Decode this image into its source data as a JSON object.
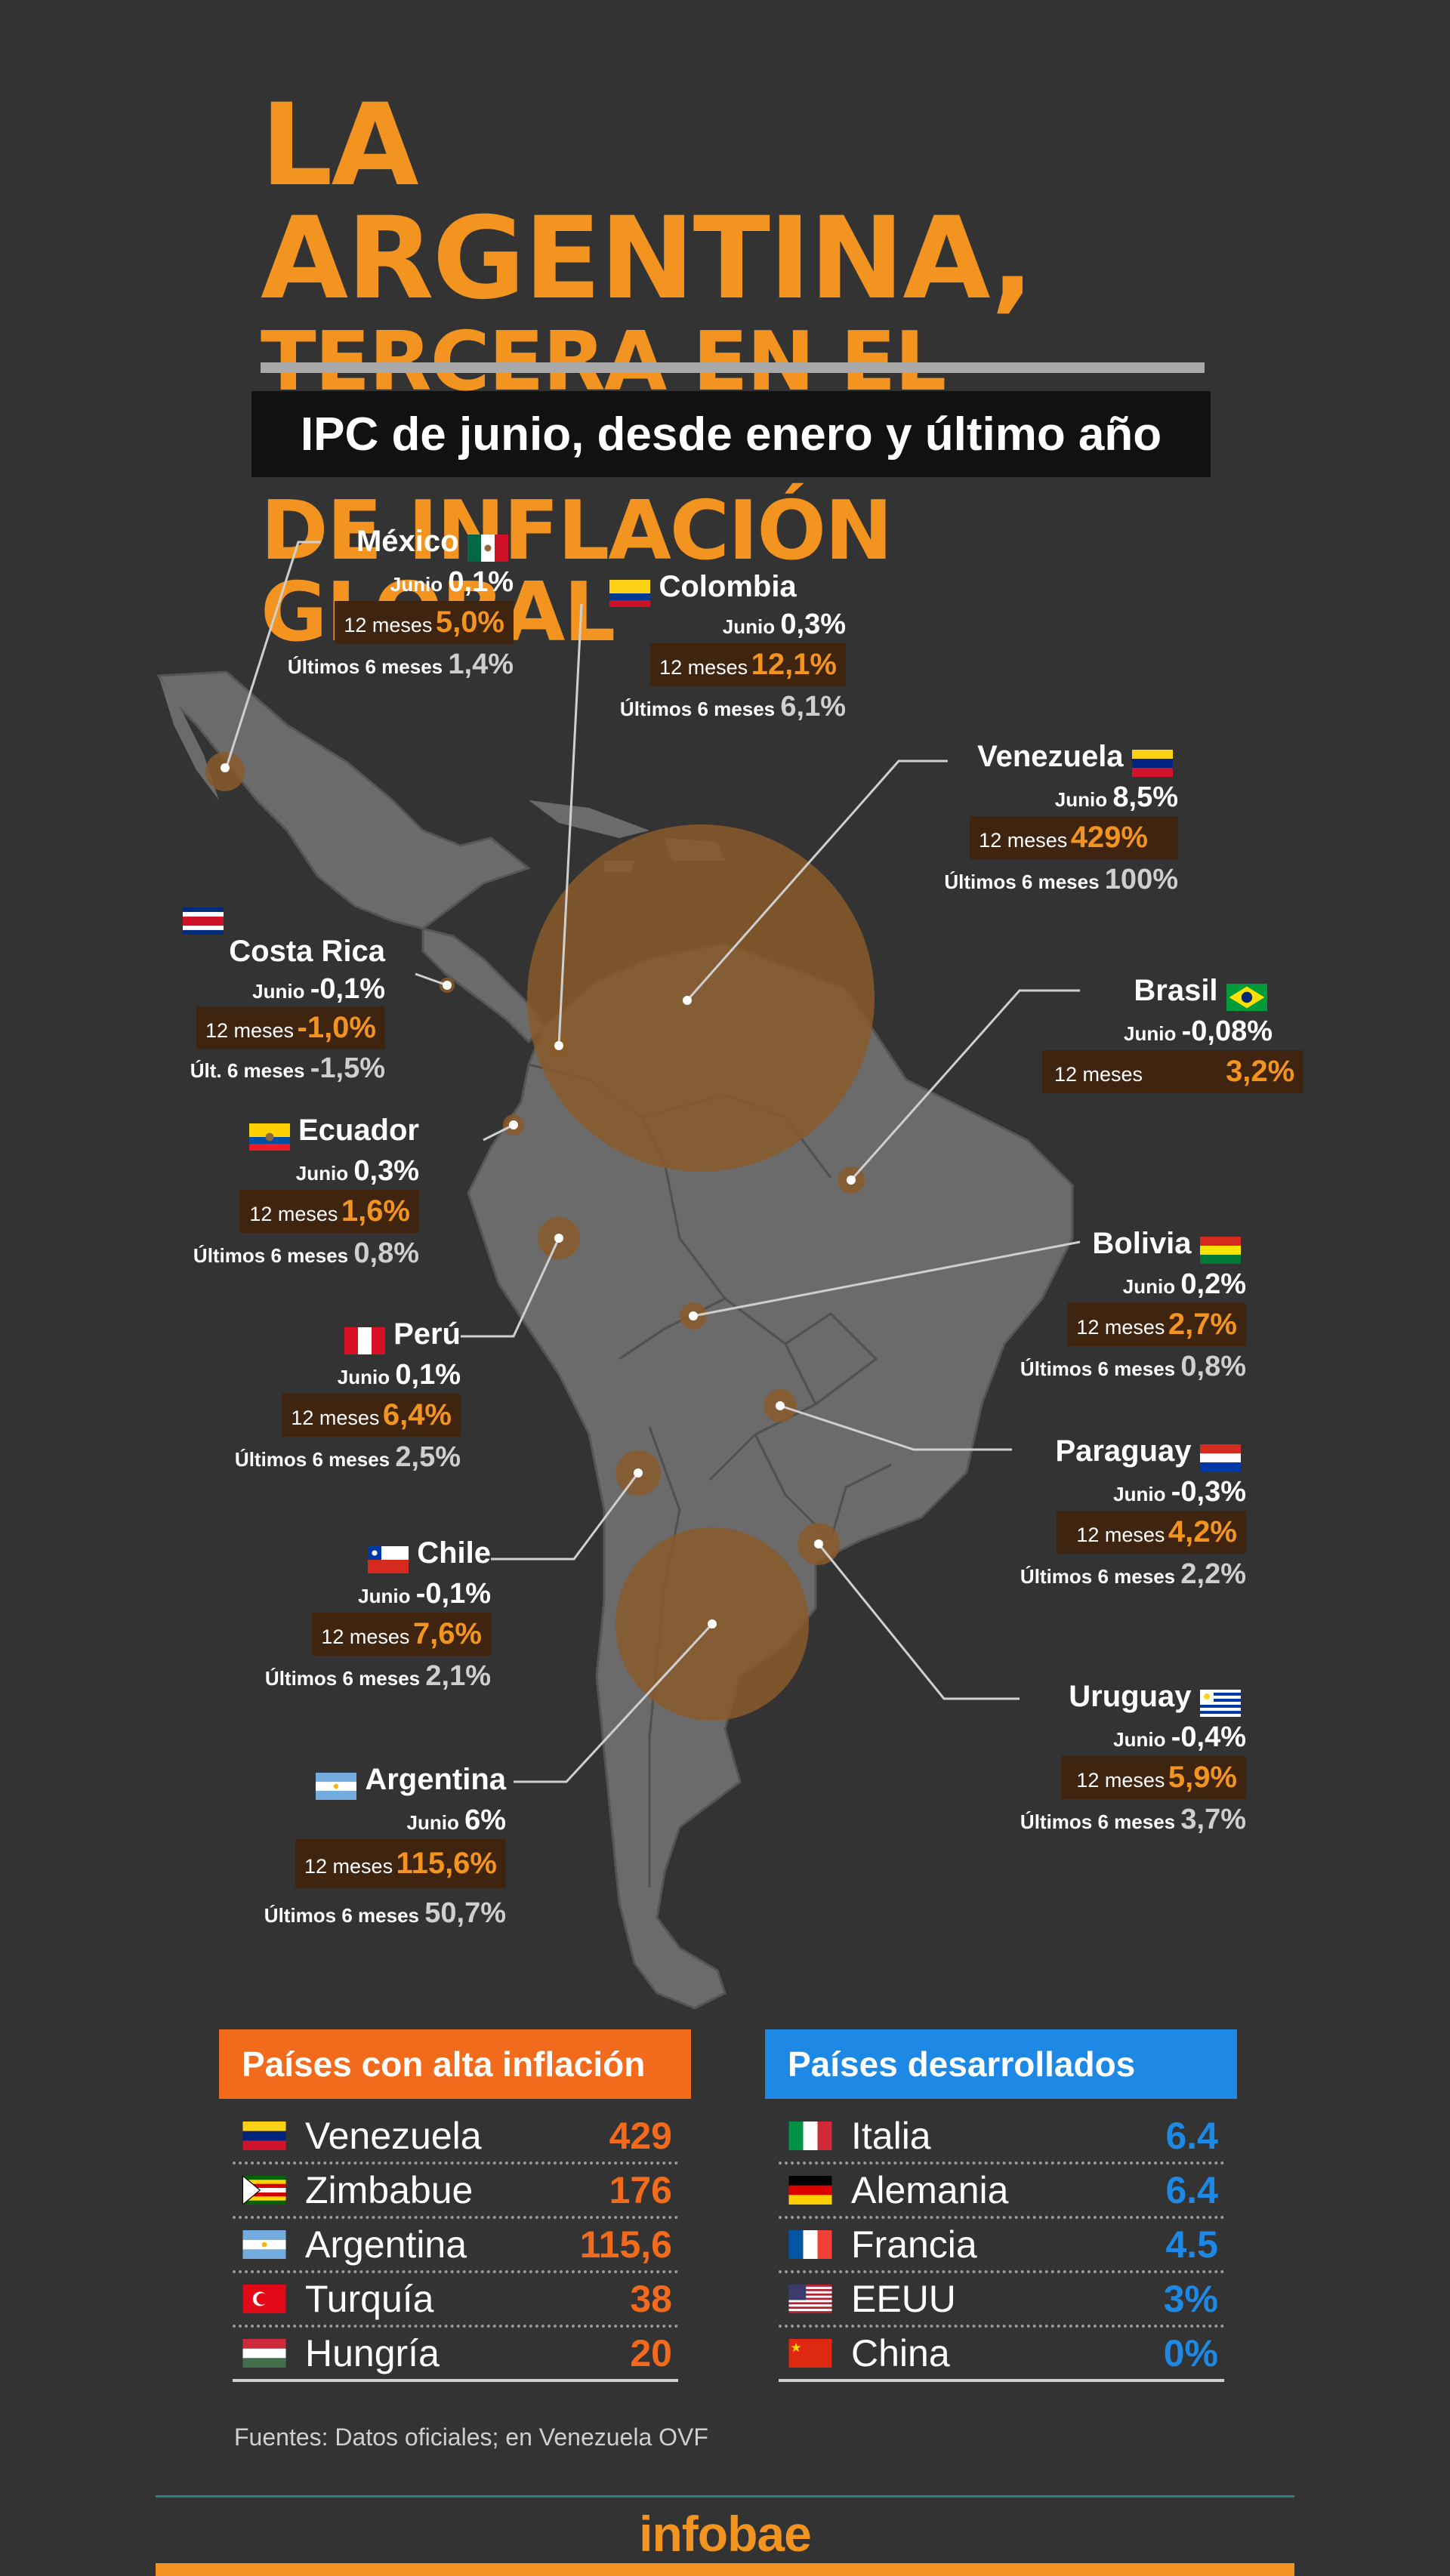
{
  "header": {
    "title_line1": "LA ARGENTINA,",
    "title_line2": "TERCERA EN EL RANKING",
    "title_line3": "DE INFLACIÓN GLOBAL",
    "subtitle": "IPC de junio, desde enero y último año"
  },
  "labels": {
    "junio": "Junio",
    "doce_meses": "12 meses",
    "ultimos6": "Últimos 6 meses",
    "ult6_short": "Últ. 6 meses"
  },
  "countries": {
    "mexico": {
      "name": "México",
      "junio": "0,1%",
      "doce": "5,0%",
      "seis": "1,4%"
    },
    "colombia": {
      "name": "Colombia",
      "junio": "0,3%",
      "doce": "12,1%",
      "seis": "6,1%"
    },
    "venezuela": {
      "name": "Venezuela",
      "junio": "8,5%",
      "doce": "429%",
      "seis": "100%"
    },
    "costarica": {
      "name": "Costa Rica",
      "junio": "-0,1%",
      "doce": "-1,0%",
      "seis": "-1,5%"
    },
    "brasil": {
      "name": "Brasil",
      "junio": "-0,08%",
      "doce": "3,2%"
    },
    "ecuador": {
      "name": "Ecuador",
      "junio": "0,3%",
      "doce": "1,6%",
      "seis": "0,8%"
    },
    "bolivia": {
      "name": "Bolivia",
      "junio": "0,2%",
      "doce": "2,7%",
      "seis": "0,8%"
    },
    "peru": {
      "name": "Perú",
      "junio": "0,1%",
      "doce": "6,4%",
      "seis": "2,5%"
    },
    "paraguay": {
      "name": "Paraguay",
      "junio": "-0,3%",
      "doce": "4,2%",
      "seis": "2,2%"
    },
    "chile": {
      "name": "Chile",
      "junio": "-0,1%",
      "doce": "7,6%",
      "seis": "2,1%"
    },
    "uruguay": {
      "name": "Uruguay",
      "junio": "-0,4%",
      "doce": "5,9%",
      "seis": "3,7%"
    },
    "argentina": {
      "name": "Argentina",
      "junio": "6%",
      "doce": "115,6%",
      "seis": "50,7%"
    }
  },
  "high_inflation": {
    "title": "Países con alta inflación",
    "color": "#f26a1b",
    "rows": [
      {
        "name": "Venezuela",
        "value": "429"
      },
      {
        "name": "Zimbabue",
        "value": "176"
      },
      {
        "name": "Argentina",
        "value": "115,6"
      },
      {
        "name": "Turquía",
        "value": "38"
      },
      {
        "name": "Hungría",
        "value": "20"
      }
    ]
  },
  "developed": {
    "title": "Países desarrollados",
    "color": "#1e88e5",
    "rows": [
      {
        "name": "Italia",
        "value": "6.4"
      },
      {
        "name": "Alemania",
        "value": "6.4"
      },
      {
        "name": "Francia",
        "value": "4.5"
      },
      {
        "name": "EEUU",
        "value": "3%"
      },
      {
        "name": "China",
        "value": "0%"
      }
    ]
  },
  "source": "Fuentes: Datos oficiales; en Venezuela OVF",
  "brand": "infobae",
  "colors": {
    "accent": "#f39420",
    "background": "#333333",
    "map": "#6b6b6b",
    "bubble": "#8a5a2a"
  }
}
